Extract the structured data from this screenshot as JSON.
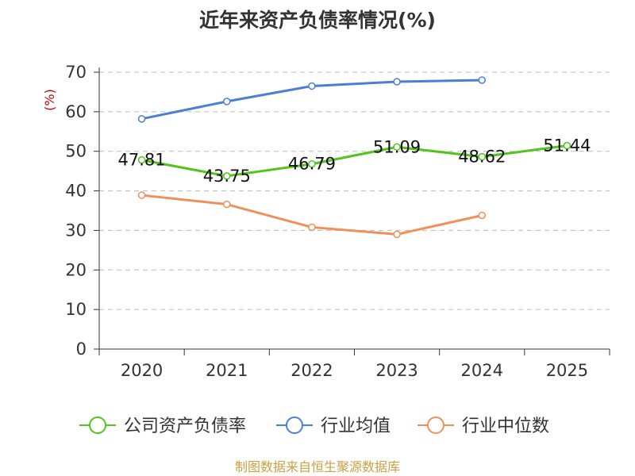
{
  "chart_data": {
    "type": "line",
    "title": "近年来资产负债率情况(%)",
    "ylabel": "(%)",
    "xlabel": "",
    "categories": [
      "2020",
      "2021",
      "2022",
      "2023",
      "2024",
      "2025"
    ],
    "y_ticks": [
      "0",
      "10",
      "20",
      "30",
      "40",
      "50",
      "60",
      "70"
    ],
    "ylim": [
      0,
      70
    ],
    "grid": true,
    "legend_position": "bottom",
    "series": [
      {
        "name": "公司资产负债率",
        "color": "#52c41a",
        "values": [
          47.81,
          43.75,
          46.79,
          51.09,
          48.62,
          51.44
        ],
        "labels": [
          "47.81",
          "43.75",
          "46.79",
          "51.09",
          "48.62",
          "51.44"
        ]
      },
      {
        "name": "行业均值",
        "color": "#4a7fd6",
        "values": [
          58.2,
          62.6,
          66.5,
          67.6,
          68.0,
          null
        ]
      },
      {
        "name": "行业中位数",
        "color": "#f28e5a",
        "values": [
          38.9,
          36.6,
          30.8,
          29.0,
          33.8,
          null
        ]
      }
    ]
  },
  "source_text": "制图数据来自恒生聚源数据库",
  "colors": {
    "title": "#333333",
    "axis": "#333333",
    "grid": "#bbbbbb",
    "ylabel": "#cc0000",
    "source": "#c8a040"
  }
}
